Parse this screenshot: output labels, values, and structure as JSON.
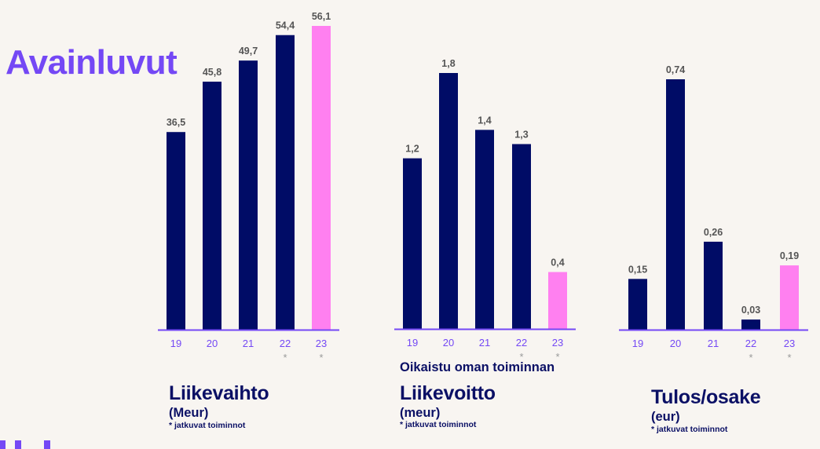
{
  "page": {
    "title": "Avainluvut"
  },
  "colors": {
    "title": "#7448f5",
    "bar_primary": "#000c66",
    "bar_highlight": "#ff80f0",
    "axis": "#7448f5",
    "value_label": "#555555",
    "caption": "#0b1065"
  },
  "chart_data": [
    {
      "type": "bar",
      "title": "Liikevaihto",
      "unit_label": "(Meur)",
      "note": "* jatkuvat toiminnot",
      "categories": [
        "19",
        "20",
        "21",
        "22",
        "23"
      ],
      "category_marks": [
        "",
        "",
        "",
        "*",
        "*"
      ],
      "values": [
        36.5,
        45.8,
        49.7,
        54.4,
        56.1
      ],
      "value_labels": [
        "36,5",
        "45,8",
        "49,7",
        "54,4",
        "56,1"
      ],
      "highlight_index": 4,
      "ylim": [
        0,
        56.1
      ],
      "grid": false
    },
    {
      "type": "bar",
      "pretitle": "Oikaistu oman toiminnan",
      "title": "Liikevoitto",
      "unit_label": "(meur)",
      "note": "* jatkuvat toiminnot",
      "categories": [
        "19",
        "20",
        "21",
        "22",
        "23"
      ],
      "category_marks": [
        "",
        "",
        "",
        "*",
        "*"
      ],
      "values": [
        1.2,
        1.8,
        1.4,
        1.3,
        0.4
      ],
      "value_labels": [
        "1,2",
        "1,8",
        "1,4",
        "1,3",
        "0,4"
      ],
      "highlight_index": 4,
      "ylim": [
        0,
        1.8
      ],
      "grid": false
    },
    {
      "type": "bar",
      "title": "Tulos/osake",
      "unit_label": "(eur)",
      "note": "* jatkuvat toiminnot",
      "categories": [
        "19",
        "20",
        "21",
        "22",
        "23"
      ],
      "category_marks": [
        "",
        "",
        "",
        "*",
        "*"
      ],
      "values": [
        0.15,
        0.74,
        0.26,
        0.03,
        0.19
      ],
      "value_labels": [
        "0,15",
        "0,74",
        "0,26",
        "0,03",
        "0,19"
      ],
      "highlight_index": 4,
      "ylim": [
        0,
        0.74
      ],
      "grid": false
    }
  ]
}
